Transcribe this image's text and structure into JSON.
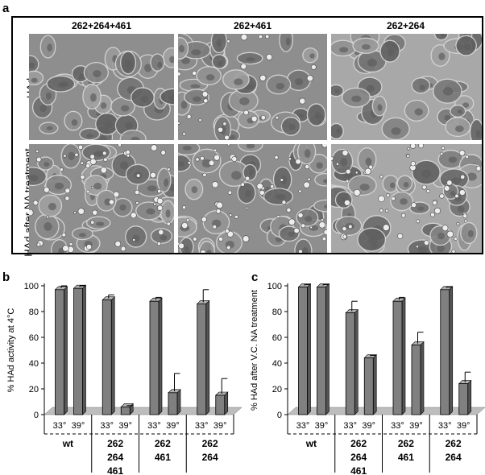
{
  "figure": {
    "panel_a": {
      "letter": "a",
      "column_labels": [
        "262+264+461",
        "262+461",
        "262+264"
      ],
      "row_labels": [
        "HAd",
        "HAd after NA treatment"
      ]
    },
    "panel_b": {
      "letter": "b",
      "ylabel": "% HAd activity at 4°C"
    },
    "panel_c": {
      "letter": "c",
      "ylabel": "% HAd after V.C. NA treatment"
    }
  },
  "chart_data": [
    {
      "type": "bar",
      "panel": "b",
      "ylabel": "% HAd activity at 4°C",
      "ylim": [
        0,
        100
      ],
      "yticks": [
        0,
        20,
        40,
        60,
        80,
        100
      ],
      "temperature_labels": [
        "33°",
        "39°",
        "33°",
        "39°",
        "33°",
        "39°",
        "33°",
        "39°"
      ],
      "groups": [
        {
          "lines": [
            "wt"
          ]
        },
        {
          "lines": [
            "262",
            "264",
            "461"
          ]
        },
        {
          "lines": [
            "262",
            "461"
          ]
        },
        {
          "lines": [
            "262",
            "264"
          ]
        }
      ],
      "values": [
        97,
        98,
        89,
        6,
        88,
        17,
        86,
        15
      ],
      "errors": [
        3,
        2,
        4,
        1,
        3,
        15,
        11,
        13
      ],
      "bar_color": "#808080",
      "grid": false
    },
    {
      "type": "bar",
      "panel": "c",
      "ylabel": "% HAd after V.C. NA treatment",
      "ylim": [
        0,
        100
      ],
      "yticks": [
        0,
        20,
        40,
        60,
        80,
        100
      ],
      "temperature_labels": [
        "33°",
        "39°",
        "33°",
        "39°",
        "33°",
        "39°",
        "33°",
        "39°"
      ],
      "groups": [
        {
          "lines": [
            "wt"
          ]
        },
        {
          "lines": [
            "262",
            "264",
            "461"
          ]
        },
        {
          "lines": [
            "262",
            "461"
          ]
        },
        {
          "lines": [
            "262",
            "264"
          ]
        }
      ],
      "values": [
        99,
        99,
        79,
        44,
        88,
        54,
        97,
        24
      ],
      "errors": [
        2,
        2,
        9,
        2,
        3,
        10,
        2,
        9
      ],
      "bar_color": "#808080",
      "grid": false
    }
  ]
}
